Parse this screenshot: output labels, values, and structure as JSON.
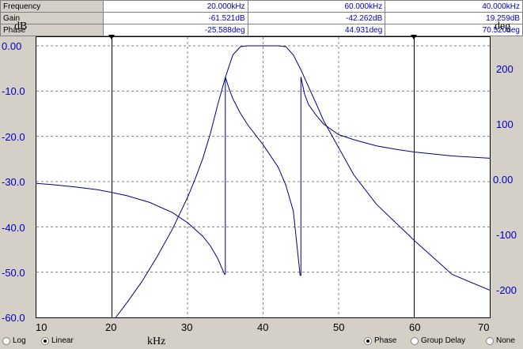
{
  "readout": {
    "rows": [
      {
        "label": "Frequency",
        "values": [
          "20.000kHz",
          "60.000kHz",
          "40.000kHz"
        ]
      },
      {
        "label": "Gain",
        "values": [
          "-61.521dB",
          "-42.262dB",
          "19.259dB"
        ]
      },
      {
        "label": "Phase",
        "values": [
          "-25.588deg",
          "44.931deg",
          "70.520deg"
        ]
      }
    ]
  },
  "axes": {
    "left_unit": "dB",
    "right_unit": "deg",
    "x_unit": "kHz",
    "left_ticks": [
      "0.00",
      "-10.0",
      "-20.0",
      "-30.0",
      "-40.0",
      "-50.0",
      "-60.0"
    ],
    "right_ticks": [
      "200",
      "100",
      "0.00",
      "-100",
      "-200"
    ],
    "x_ticks": [
      "10",
      "20",
      "30",
      "40",
      "50",
      "60",
      "70"
    ]
  },
  "scale_options": {
    "log": "Log",
    "linear": "Linear",
    "selected": "Linear"
  },
  "display_options": {
    "phase": "Phase",
    "group_delay": "Group Delay",
    "none": "None",
    "selected": "Phase"
  },
  "colors": {
    "trace": "#000080",
    "tick_text": "#0000c0",
    "grid": "#808080"
  },
  "chart_data": {
    "type": "line",
    "x_range": [
      10,
      70
    ],
    "gain_range": [
      -60,
      0
    ],
    "phase_range": [
      -250,
      250
    ],
    "cursors": [
      20,
      60
    ],
    "grid": true,
    "series": [
      {
        "name": "Gain",
        "axis": "left",
        "x": [
          20.5,
          22,
          24,
          26,
          28,
          30,
          31,
          32,
          33,
          34,
          35,
          35.5,
          36,
          37,
          38,
          42,
          43,
          44,
          45,
          46,
          47,
          48,
          50,
          52,
          55,
          60,
          65,
          70
        ],
        "y": [
          -60,
          -56.7,
          -52,
          -46.5,
          -40.5,
          -33.5,
          -29.5,
          -25,
          -19.5,
          -13,
          -7,
          -4.5,
          -2,
          -0.2,
          0,
          0,
          -0.2,
          -2,
          -5.3,
          -9,
          -12.7,
          -16.5,
          -22.5,
          -28.5,
          -35,
          -43,
          -50.5,
          -54
        ]
      },
      {
        "name": "Phase",
        "axis": "right",
        "x": [
          10,
          12,
          15,
          18,
          20,
          22,
          25,
          28,
          30,
          32,
          33,
          34,
          34.9,
          35,
          35,
          35.5,
          36,
          37,
          38,
          40,
          42,
          43,
          44,
          44.9,
          45,
          45,
          45.5,
          46,
          47,
          48,
          50,
          52,
          55,
          58,
          60,
          65,
          70
        ],
        "y": [
          -11,
          -13,
          -17,
          -22,
          -27,
          -33,
          -45,
          -63,
          -81,
          -105,
          -122,
          -145,
          -173,
          -173,
          179,
          158,
          140,
          114,
          93,
          58,
          18,
          -14,
          -60,
          -175,
          -175,
          179,
          148,
          130,
          111,
          95,
          76,
          67,
          56,
          49,
          45,
          38,
          34
        ]
      }
    ]
  }
}
